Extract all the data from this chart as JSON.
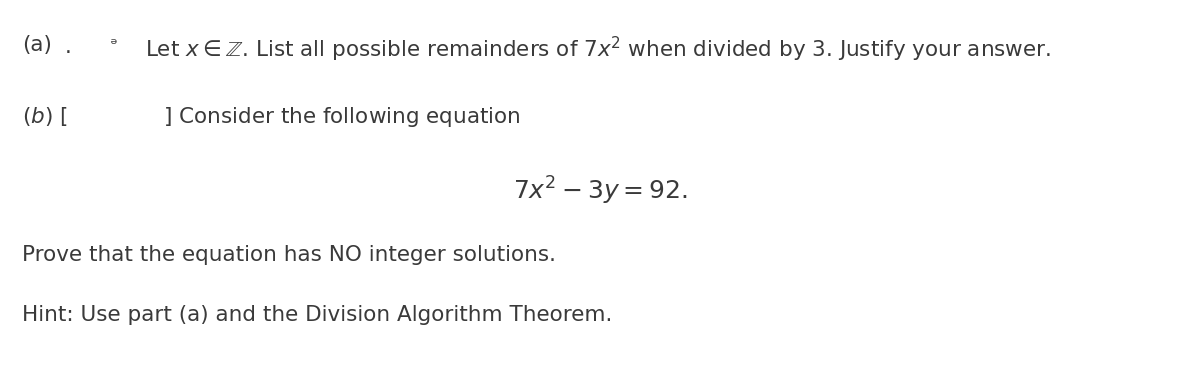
{
  "background_color": "#ffffff",
  "text_color": "#3a3a3a",
  "font_size_main": 15.5,
  "font_size_math_center": 18,
  "fig_width": 12.0,
  "fig_height": 3.74,
  "dpi": 100,
  "line1_a": "(a)",
  "line1_dot": ".",
  "line1_mark": "  ",
  "line1_body": "Let $x \\in \\mathbb{Z}$. List all possible remainders of $7x^2$ when divided by 3. Justify your answer.",
  "line2": "$(b)$ [              ] Consider the following equation",
  "line3_math": "$7x^2 - 3y = 92.$",
  "line4": "Prove that the equation has NO integer solutions.",
  "line5": "Hint: Use part (a) and the Division Algorithm Theorem."
}
